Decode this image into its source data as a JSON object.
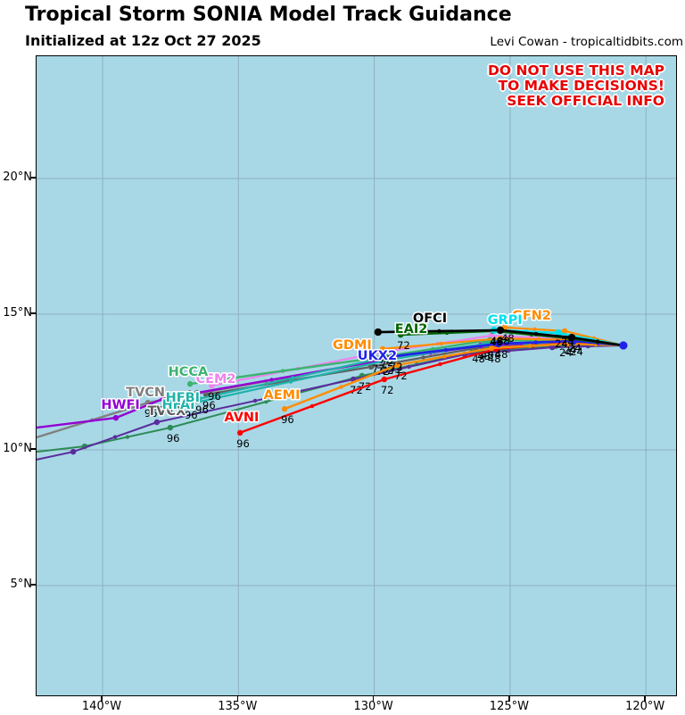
{
  "header": {
    "title": "Tropical Storm SONIA Model Track Guidance",
    "initialized": "Initialized at 12z Oct 27 2025",
    "credit": "Levi Cowan - tropicaltidbits.com"
  },
  "warning": {
    "lines": [
      "DO NOT USE THIS MAP",
      "TO MAKE DECISIONS!",
      "SEEK OFFICIAL INFO"
    ],
    "color": "#E80000"
  },
  "map": {
    "background": "#A8D8E6",
    "grid_color": "#8FAFBE",
    "border_color": "#000000",
    "start_marker_color": "#2121E8"
  },
  "chart_data": {
    "type": "line",
    "title": "Tropical Storm SONIA Model Track Guidance",
    "subtitle": "Initialized at 12z Oct 27 2025",
    "x_axis": {
      "ticks": [
        140,
        135,
        130,
        125,
        120
      ],
      "tick_labels": [
        "140°W",
        "135°W",
        "130°W",
        "125°W",
        "120°W"
      ],
      "range_deg_west": [
        142.4,
        118.9
      ]
    },
    "y_axis": {
      "ticks": [
        20,
        15,
        10,
        5
      ],
      "tick_labels": [
        "20°N",
        "15°N",
        "10°N",
        "5°N"
      ],
      "range_deg_north": [
        1.0,
        24.5
      ]
    },
    "start_position": {
      "lat": 13.85,
      "lon_w": 120.83
    },
    "hour_label_values": [
      24,
      48,
      72,
      96
    ],
    "models": [
      {
        "id": "seagreen-aux",
        "name": "",
        "color": "#2E8B57",
        "lw": 2,
        "points": [
          [
            120.83,
            13.85
          ],
          [
            123.32,
            13.82
          ],
          [
            126.41,
            13.59
          ],
          [
            130.45,
            12.73
          ],
          [
            137.51,
            10.82
          ],
          [
            140.66,
            10.13
          ],
          [
            142.43,
            9.93
          ]
        ],
        "hours": [
          0,
          24,
          48,
          72,
          96,
          120,
          132
        ],
        "show_hours": [
          72,
          96
        ],
        "clip_last": true
      },
      {
        "id": "purple-aux",
        "name": "",
        "color": "#5B2C9E",
        "lw": 2,
        "points": [
          [
            120.83,
            13.85
          ],
          [
            123.45,
            13.78
          ],
          [
            126.67,
            13.52
          ],
          [
            130.77,
            12.6
          ],
          [
            138.0,
            11.02
          ],
          [
            141.08,
            9.93
          ],
          [
            142.43,
            9.64
          ]
        ],
        "hours": [
          0,
          24,
          48,
          72,
          96,
          120,
          132
        ],
        "show_hours": [
          72
        ],
        "clip_last": true
      },
      {
        "id": "TVCX",
        "name": "TVCX",
        "color": "#5F5F5F",
        "lw": 2.2,
        "points": [
          [
            120.83,
            13.85
          ],
          [
            123.22,
            13.91
          ],
          [
            126.27,
            13.75
          ],
          [
            130.12,
            13.06
          ],
          [
            136.19,
            12.04
          ]
        ],
        "hours": [
          0,
          24,
          48,
          72,
          96
        ],
        "show_hours": [
          48,
          96
        ],
        "label_pos": [
          137.64,
          11.45
        ]
      },
      {
        "id": "TVCN",
        "name": "TVCN",
        "color": "#808080",
        "lw": 2.4,
        "points": [
          [
            120.83,
            13.85
          ],
          [
            123.06,
            13.98
          ],
          [
            125.95,
            13.88
          ],
          [
            129.63,
            13.32
          ],
          [
            138.33,
            11.74
          ],
          [
            142.43,
            10.46
          ]
        ],
        "hours": [
          0,
          24,
          48,
          72,
          96,
          120
        ],
        "show_hours": [
          24,
          48,
          72,
          96
        ],
        "label_pos": [
          138.42,
          12.14
        ],
        "clip_last": true
      },
      {
        "id": "HWFI",
        "name": "HWFI",
        "color": "#9400D3",
        "lw": 2.4,
        "points": [
          [
            120.83,
            13.85
          ],
          [
            123.12,
            13.98
          ],
          [
            126.08,
            13.85
          ],
          [
            129.79,
            13.29
          ],
          [
            137.77,
            11.88
          ],
          [
            139.51,
            11.18
          ],
          [
            142.43,
            10.82
          ]
        ],
        "hours": [
          0,
          24,
          48,
          72,
          96,
          108,
          120
        ],
        "show_hours": [
          48,
          72,
          96
        ],
        "label_pos": [
          139.34,
          11.68
        ],
        "clip_last": true
      },
      {
        "id": "HFAI",
        "name": "HFAI",
        "color": "#20B2AA",
        "lw": 2.2,
        "points": [
          [
            120.83,
            13.85
          ],
          [
            122.9,
            13.98
          ],
          [
            125.69,
            13.95
          ],
          [
            129.3,
            13.35
          ],
          [
            136.85,
            11.68
          ]
        ],
        "hours": [
          0,
          24,
          48,
          72,
          96
        ],
        "show_hours": [
          48,
          72,
          96
        ],
        "label_pos": [
          137.21,
          11.68
        ]
      },
      {
        "id": "HFBI",
        "name": "HFBI",
        "color": "#20B2AA",
        "lw": 2.2,
        "points": [
          [
            120.83,
            13.85
          ],
          [
            122.96,
            13.95
          ],
          [
            125.85,
            13.91
          ],
          [
            129.56,
            13.42
          ],
          [
            136.45,
            11.88
          ]
        ],
        "hours": [
          0,
          24,
          48,
          72,
          96
        ],
        "show_hours": [
          96
        ],
        "label_pos": [
          137.05,
          11.94
        ]
      },
      {
        "id": "CEM2",
        "name": "CEM2",
        "color": "#EE82EE",
        "lw": 2.2,
        "points": [
          [
            120.83,
            13.85
          ],
          [
            122.9,
            14.08
          ],
          [
            125.69,
            14.21
          ],
          [
            129.63,
            13.62
          ],
          [
            135.99,
            12.37
          ]
        ],
        "hours": [
          0,
          24,
          48,
          72,
          96
        ],
        "show_hours": [
          24,
          48,
          72,
          96
        ],
        "label_pos": [
          135.83,
          12.63
        ]
      },
      {
        "id": "HCCA",
        "name": "HCCA",
        "color": "#3CB371",
        "lw": 2.4,
        "points": [
          [
            120.83,
            13.85
          ],
          [
            122.99,
            14.05
          ],
          [
            125.75,
            14.05
          ],
          [
            129.95,
            13.39
          ],
          [
            136.78,
            12.43
          ]
        ],
        "hours": [
          0,
          24,
          48,
          72,
          96
        ],
        "show_hours": [
          72,
          96
        ],
        "label_pos": [
          136.85,
          12.89
        ]
      },
      {
        "id": "AVNI",
        "name": "AVNI",
        "color": "#FF0000",
        "lw": 2.4,
        "points": [
          [
            120.83,
            13.85
          ],
          [
            122.8,
            13.95
          ],
          [
            125.52,
            13.72
          ],
          [
            129.63,
            12.6
          ],
          [
            134.94,
            10.63
          ]
        ],
        "hours": [
          0,
          24,
          48,
          72,
          96
        ],
        "show_hours": [
          72,
          96
        ],
        "label_pos": [
          134.88,
          11.22
        ]
      },
      {
        "id": "AEMI",
        "name": "AEMI",
        "color": "#FF8C00",
        "lw": 2.4,
        "points": [
          [
            120.83,
            13.85
          ],
          [
            122.86,
            13.91
          ],
          [
            125.69,
            13.75
          ],
          [
            129.13,
            13.13
          ],
          [
            133.3,
            11.51
          ]
        ],
        "hours": [
          0,
          24,
          48,
          72,
          96
        ],
        "show_hours": [
          48,
          72,
          96
        ],
        "label_pos": [
          133.4,
          12.04
        ]
      },
      {
        "id": "GDMI",
        "name": "GDMI",
        "color": "#FF8C00",
        "lw": 2.2,
        "points": [
          [
            120.83,
            13.85
          ],
          [
            122.57,
            14.05
          ],
          [
            125.36,
            14.11
          ],
          [
            129.69,
            13.72
          ]
        ],
        "hours": [
          0,
          24,
          48,
          72
        ],
        "show_hours": [
          72
        ],
        "label_pos": [
          130.81,
          13.88
        ]
      },
      {
        "id": "UKX2",
        "name": "UKX2",
        "color": "#2121E8",
        "lw": 2.6,
        "dot_r": 4,
        "points": [
          [
            120.83,
            13.85
          ],
          [
            122.66,
            14.01
          ],
          [
            125.43,
            13.91
          ],
          [
            129.3,
            13.45
          ]
        ],
        "hours": [
          0,
          24,
          48,
          72
        ],
        "show_hours": [
          24,
          48,
          72
        ],
        "label_pos": [
          129.89,
          13.49
        ]
      },
      {
        "id": "EAI2",
        "name": "EAI2",
        "color": "#006400",
        "lw": 2.4,
        "points": [
          [
            120.83,
            13.85
          ],
          [
            122.8,
            14.11
          ],
          [
            125.62,
            14.38
          ],
          [
            129.03,
            14.24
          ]
        ],
        "hours": [
          0,
          24,
          48,
          72
        ],
        "show_hours": [
          48,
          72
        ],
        "label_pos": [
          128.64,
          14.47
        ]
      },
      {
        "id": "GFN2",
        "name": "GFN2",
        "color": "#FF8C00",
        "lw": 2.2,
        "points": [
          [
            120.83,
            13.85
          ],
          [
            122.99,
            14.38
          ],
          [
            125.19,
            14.51
          ]
        ],
        "hours": [
          0,
          24,
          48
        ],
        "show_hours": [
          24,
          48
        ],
        "label_pos": [
          124.21,
          14.97
        ]
      },
      {
        "id": "GRPI",
        "name": "GRPI",
        "color": "#00E0F0",
        "lw": 2.6,
        "dot_r": 4,
        "points": [
          [
            120.83,
            13.85
          ],
          [
            123.22,
            14.31
          ],
          [
            125.59,
            14.41
          ]
        ],
        "hours": [
          0,
          24,
          48
        ],
        "show_hours": [
          24,
          48
        ],
        "label_pos": [
          125.19,
          14.8
        ]
      },
      {
        "id": "OFCI",
        "name": "OFCI",
        "color": "#000000",
        "lw": 2.6,
        "dot_r": 4.2,
        "points": [
          [
            120.83,
            13.85
          ],
          [
            122.73,
            14.14
          ],
          [
            125.36,
            14.41
          ],
          [
            129.86,
            14.34
          ]
        ],
        "hours": [
          0,
          24,
          48,
          72
        ],
        "show_hours": [
          24,
          48
        ],
        "label_pos": [
          127.95,
          14.87
        ]
      }
    ]
  }
}
